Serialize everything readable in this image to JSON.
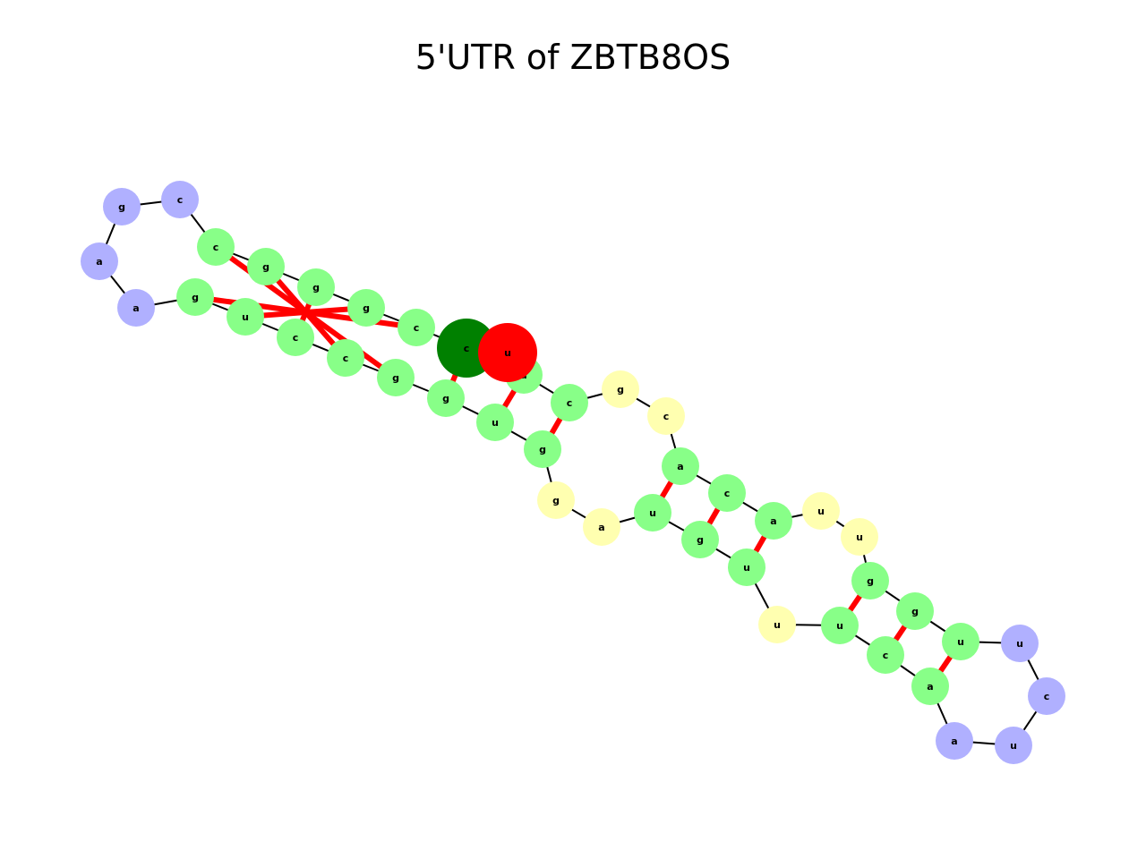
{
  "title": "5'UTR of ZBTB8OS",
  "colors": {
    "stem": "#88ff88",
    "hairpin_loop": "#b0b0ff",
    "internal_loop": "#ffffb0",
    "highlight_start": "#008000",
    "highlight_end": "#ff0000",
    "backbone": "#000000",
    "base_pair": "#ff0000"
  },
  "nucleotides": [
    {
      "id": 1,
      "base": "c",
      "type": "highlight_start"
    },
    {
      "id": 2,
      "base": "c",
      "type": "stem"
    },
    {
      "id": 3,
      "base": "g",
      "type": "stem"
    },
    {
      "id": 4,
      "base": "g",
      "type": "stem"
    },
    {
      "id": 5,
      "base": "g",
      "type": "stem"
    },
    {
      "id": 6,
      "base": "c",
      "type": "stem"
    },
    {
      "id": 7,
      "base": "c",
      "type": "hairpin_loop"
    },
    {
      "id": 8,
      "base": "g",
      "type": "hairpin_loop"
    },
    {
      "id": 9,
      "base": "a",
      "type": "hairpin_loop"
    },
    {
      "id": 10,
      "base": "a",
      "type": "hairpin_loop"
    },
    {
      "id": 11,
      "base": "g",
      "type": "stem"
    },
    {
      "id": 12,
      "base": "u",
      "type": "stem"
    },
    {
      "id": 13,
      "base": "c",
      "type": "stem"
    },
    {
      "id": 14,
      "base": "c",
      "type": "stem"
    },
    {
      "id": 15,
      "base": "g",
      "type": "stem"
    },
    {
      "id": 16,
      "base": "g",
      "type": "stem"
    },
    {
      "id": 17,
      "base": "u",
      "type": "stem"
    },
    {
      "id": 18,
      "base": "g",
      "type": "stem"
    },
    {
      "id": 19,
      "base": "g",
      "type": "internal_loop"
    },
    {
      "id": 20,
      "base": "a",
      "type": "internal_loop"
    },
    {
      "id": 21,
      "base": "u",
      "type": "stem"
    },
    {
      "id": 22,
      "base": "g",
      "type": "stem"
    },
    {
      "id": 23,
      "base": "u",
      "type": "stem"
    },
    {
      "id": 24,
      "base": "u",
      "type": "internal_loop"
    },
    {
      "id": 25,
      "base": "u",
      "type": "stem"
    },
    {
      "id": 26,
      "base": "c",
      "type": "stem"
    },
    {
      "id": 27,
      "base": "a",
      "type": "stem"
    },
    {
      "id": 28,
      "base": "a",
      "type": "hairpin_loop"
    },
    {
      "id": 29,
      "base": "u",
      "type": "hairpin_loop"
    },
    {
      "id": 30,
      "base": "c",
      "type": "hairpin_loop"
    },
    {
      "id": 31,
      "base": "u",
      "type": "hairpin_loop"
    },
    {
      "id": 32,
      "base": "u",
      "type": "stem"
    },
    {
      "id": 33,
      "base": "g",
      "type": "stem"
    },
    {
      "id": 34,
      "base": "g",
      "type": "stem"
    },
    {
      "id": 35,
      "base": "u",
      "type": "internal_loop"
    },
    {
      "id": 36,
      "base": "u",
      "type": "internal_loop"
    },
    {
      "id": 37,
      "base": "a",
      "type": "stem"
    },
    {
      "id": 38,
      "base": "c",
      "type": "stem"
    },
    {
      "id": 39,
      "base": "a",
      "type": "stem"
    },
    {
      "id": 40,
      "base": "c",
      "type": "internal_loop"
    },
    {
      "id": 41,
      "base": "g",
      "type": "internal_loop"
    },
    {
      "id": 42,
      "base": "c",
      "type": "stem"
    },
    {
      "id": 43,
      "base": "a",
      "type": "stem"
    },
    {
      "id": 44,
      "base": "u",
      "type": "highlight_end"
    }
  ],
  "base_pairs": [
    [
      2,
      11
    ],
    [
      3,
      12
    ],
    [
      4,
      13
    ],
    [
      5,
      14
    ],
    [
      6,
      15
    ],
    [
      1,
      16
    ],
    [
      43,
      17
    ],
    [
      42,
      18
    ],
    [
      39,
      21
    ],
    [
      38,
      22
    ],
    [
      37,
      23
    ],
    [
      34,
      25
    ],
    [
      33,
      26
    ],
    [
      32,
      27
    ]
  ]
}
